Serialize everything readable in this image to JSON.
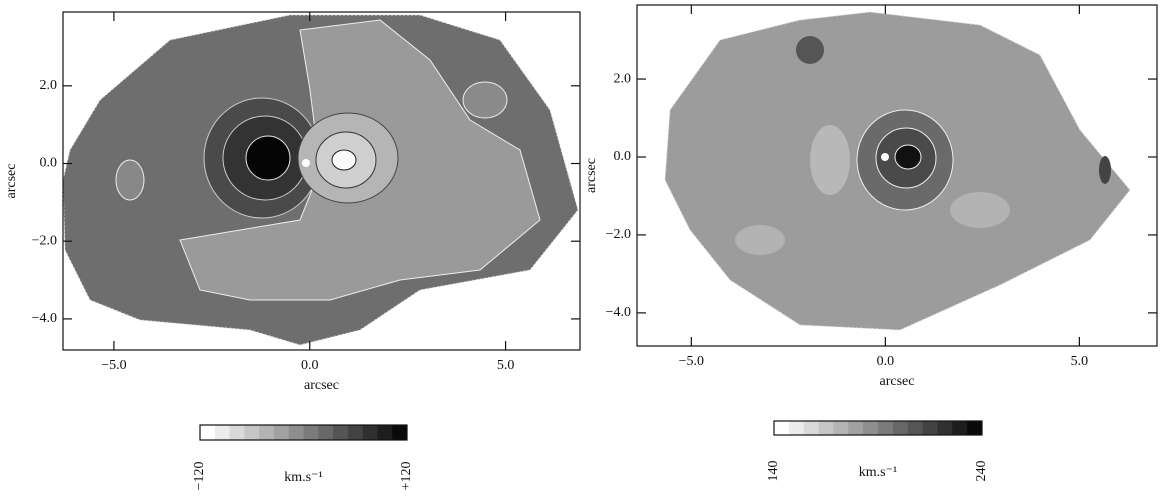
{
  "chart_data": [
    {
      "type": "heatmap",
      "xlabel": "arcsec",
      "ylabel": "arcsec",
      "xlim": [
        -6.3,
        6.9
      ],
      "ylim": [
        -4.8,
        3.9
      ],
      "xticks": [
        {
          "value": -5,
          "label": "−5.0"
        },
        {
          "value": 0,
          "label": "0.0"
        },
        {
          "value": 5,
          "label": "5.0"
        }
      ],
      "yticks": [
        {
          "value": -4,
          "label": "−4.0"
        },
        {
          "value": -2,
          "label": "−2.0"
        },
        {
          "value": 0,
          "label": "0.0"
        },
        {
          "value": 2,
          "label": "2.0"
        }
      ],
      "colorbar": {
        "min": {
          "value": -120,
          "label": "−120"
        },
        "max": {
          "value": 120,
          "label": "+120"
        },
        "unit": "km.s⁻¹"
      }
    },
    {
      "type": "heatmap",
      "xlabel": "arcsec",
      "ylabel": "arcsec",
      "xlim": [
        -6.4,
        7.0
      ],
      "ylim": [
        -4.85,
        3.9
      ],
      "xticks": [
        {
          "value": -5,
          "label": "−5.0"
        },
        {
          "value": 0,
          "label": "0.0"
        },
        {
          "value": 5,
          "label": "5.0"
        }
      ],
      "yticks": [
        {
          "value": -4,
          "label": "−4.0"
        },
        {
          "value": -2,
          "label": "−2.0"
        },
        {
          "value": 0,
          "label": "0.0"
        },
        {
          "value": 2,
          "label": "2.0"
        }
      ],
      "colorbar": {
        "min": {
          "value": 140,
          "label": "140"
        },
        "max": {
          "value": 240,
          "label": "240"
        },
        "unit": "km.s⁻¹"
      }
    }
  ]
}
